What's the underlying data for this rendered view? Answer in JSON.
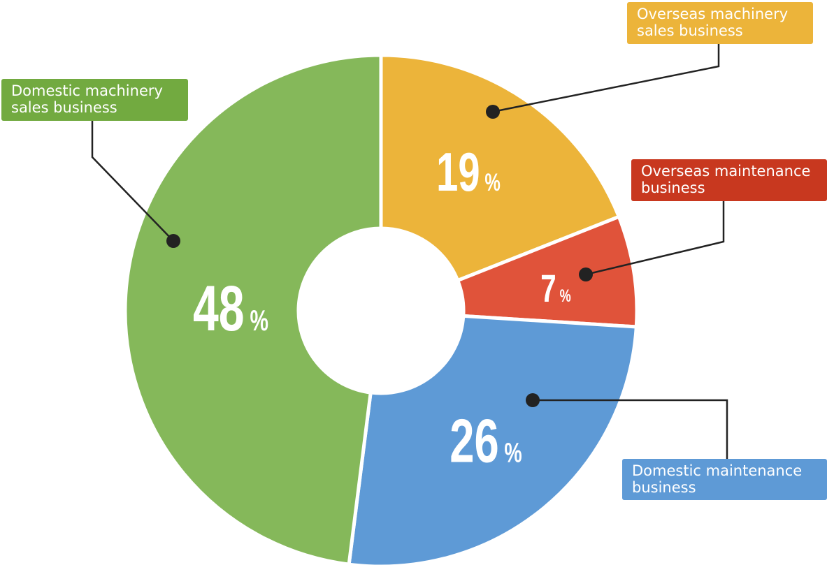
{
  "chart_data": {
    "type": "donut",
    "categories": [
      "Overseas machinery sales business",
      "Overseas maintenance business",
      "Domestic maintenance business",
      "Domestic machinery sales business"
    ],
    "values": [
      19,
      7,
      26,
      48
    ],
    "value_labels": [
      "19%",
      "7%",
      "26%",
      "48%"
    ],
    "colors": [
      "#ecb43a",
      "#e0533a",
      "#5e9ad6",
      "#85b85a"
    ],
    "label_colors": [
      "#ecb43a",
      "#c8381f",
      "#5e9ad6",
      "#72aa40"
    ]
  }
}
